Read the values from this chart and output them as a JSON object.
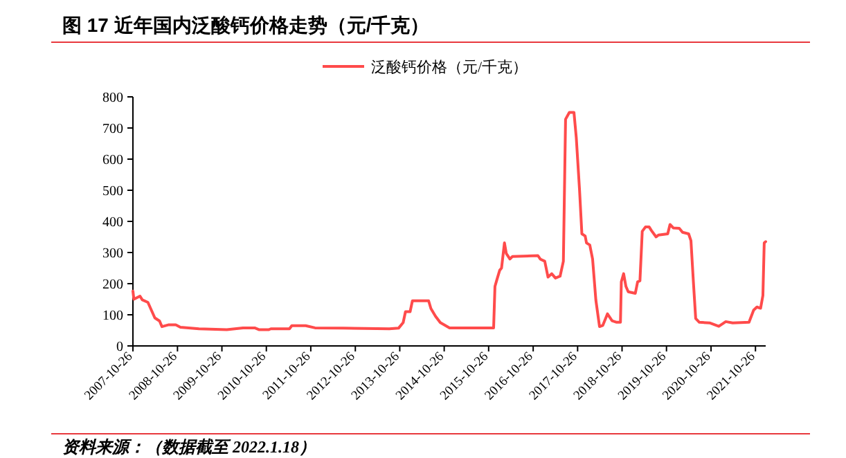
{
  "chart_data": {
    "type": "line",
    "title": "图 17 近年国内泛酸钙价格走势（元/千克）",
    "annotations": [
      "资料来源：（数据截至 2022.1.18）"
    ],
    "legend": "top",
    "x": [
      "2007-10-26",
      "2007-11-03",
      "2007-12-23",
      "2008-01-11",
      "2008-02-26",
      "2008-04-23",
      "2008-06-01",
      "2008-06-20",
      "2008-08-16",
      "2008-10-12",
      "2008-11-19",
      "2009-04-20",
      "2009-12-05",
      "2010-04-17",
      "2010-07-22",
      "2010-08-29",
      "2010-11-13",
      "2010-12-02",
      "2011-05-04",
      "2011-05-23",
      "2011-09-14",
      "2011-11-30",
      "2012-07-15",
      "2013-08-01",
      "2013-10-16",
      "2013-11-23",
      "2013-12-12",
      "2014-01-19",
      "2014-02-07",
      "2014-06-20",
      "2014-07-09",
      "2014-08-16",
      "2014-09-24",
      "2014-12-09",
      "2015-11-17",
      "2015-12-06",
      "2015-12-17",
      "2016-01-02",
      "2016-01-25",
      "2016-02-09",
      "2016-03-04",
      "2016-03-19",
      "2016-04-18",
      "2016-05-08",
      "2016-12-04",
      "2016-12-23",
      "2017-01-29",
      "2017-02-25",
      "2017-03-27",
      "2017-04-27",
      "2017-06-04",
      "2017-07-01",
      "2017-07-19",
      "2017-08-19",
      "2017-09-26",
      "2017-10-15",
      "2017-11-11",
      "2017-11-30",
      "2017-12-27",
      "2018-01-07",
      "2018-02-03",
      "2018-02-26",
      "2018-03-25",
      "2018-04-24",
      "2018-05-21",
      "2018-06-28",
      "2018-08-05",
      "2018-09-12",
      "2018-10-13",
      "2018-10-20",
      "2018-11-08",
      "2018-11-27",
      "2018-12-16",
      "2019-02-12",
      "2019-03-03",
      "2019-03-22",
      "2019-04-10",
      "2019-05-06",
      "2019-06-06",
      "2019-06-24",
      "2019-08-02",
      "2019-08-21",
      "2019-11-05",
      "2019-11-24",
      "2019-12-21",
      "2020-02-08",
      "2020-03-06",
      "2020-04-25",
      "2020-05-14",
      "2020-06-03",
      "2020-06-22",
      "2020-07-22",
      "2020-10-14",
      "2020-12-29",
      "2021-02-24",
      "2021-04-22",
      "2021-09-03",
      "2021-10-11",
      "2021-11-07",
      "2021-12-07",
      "2021-12-26",
      "2022-01-06",
      "2022-01-18"
    ],
    "series": [
      {
        "name": "泛酸钙价格（元/千克）",
        "color": "#ff4b4b",
        "values": [
          176,
          150,
          160,
          148,
          140,
          90,
          80,
          62,
          68,
          68,
          60,
          55,
          52,
          58,
          58,
          52,
          52,
          55,
          55,
          65,
          65,
          58,
          57,
          55,
          57,
          75,
          110,
          110,
          145,
          145,
          120,
          95,
          75,
          58,
          58,
          58,
          191,
          213,
          243,
          250,
          331,
          297,
          279,
          287,
          290,
          279,
          272,
          221,
          232,
          218,
          224,
          272,
          728,
          750,
          750,
          669,
          500,
          360,
          353,
          331,
          324,
          279,
          147,
          62,
          66,
          103,
          81,
          76,
          76,
          206,
          232,
          191,
          174,
          169,
          206,
          209,
          368,
          382,
          382,
          371,
          350,
          356,
          360,
          390,
          379,
          378,
          365,
          360,
          338,
          206,
          88,
          76,
          74,
          63,
          78,
          74,
          76,
          115,
          125,
          121,
          162,
          331,
          335
        ]
      }
    ],
    "xlim": [
      "2007-10-26",
      "2022-01-18"
    ],
    "xticks": [
      "2007-10-26",
      "2008-10-26",
      "2009-10-26",
      "2010-10-26",
      "2011-10-26",
      "2012-10-26",
      "2013-10-26",
      "2014-10-26",
      "2015-10-26",
      "2016-10-26",
      "2017-10-26",
      "2018-10-26",
      "2019-10-26",
      "2020-10-26",
      "2021-10-26"
    ],
    "ylim": [
      0,
      800
    ],
    "yticks": [
      0,
      100,
      200,
      300,
      400,
      500,
      600,
      700,
      800
    ]
  }
}
